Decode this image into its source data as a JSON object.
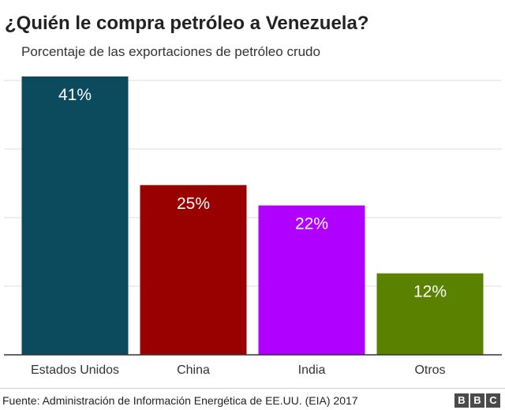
{
  "chart_data": {
    "type": "bar",
    "title": "¿Quién le compra petróleo a Venezuela?",
    "subtitle": "Porcentaje de las exportaciones de petróleo crudo",
    "categories": [
      "Estados Unidos",
      "China",
      "India",
      "Otros"
    ],
    "values": [
      41,
      25,
      22,
      12
    ],
    "value_labels": [
      "41%",
      "25%",
      "22%",
      "12%"
    ],
    "colors": [
      "#0c4a5e",
      "#990000",
      "#b000ff",
      "#5a8200"
    ],
    "ylim": [
      0,
      41
    ],
    "grid": true,
    "xlabel": "",
    "ylabel": ""
  },
  "footer": {
    "source": "Fuente: Administración de Información Energética de EE.UU. (EIA)  2017",
    "logo_letters": [
      "B",
      "B",
      "C"
    ]
  },
  "colors": {
    "grid": "#dddddd",
    "baseline": "#333333",
    "value_label": "#ffffff"
  }
}
